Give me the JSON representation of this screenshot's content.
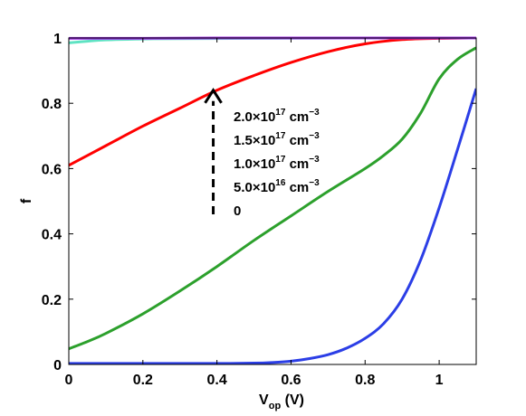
{
  "chart_data": {
    "type": "line",
    "title": "",
    "xlabel": "V",
    "xlabel_sub": "op",
    "xlabel_suffix": " (V)",
    "ylabel": "f",
    "xlim": [
      0,
      1.1
    ],
    "ylim": [
      0,
      1.0
    ],
    "x_ticks": [
      0,
      0.2,
      0.4,
      0.6,
      0.8,
      1
    ],
    "x_tick_labels": [
      "0",
      "0.2",
      "0.4",
      "0.6",
      "0.8",
      "1"
    ],
    "y_ticks": [
      0,
      0.2,
      0.4,
      0.6,
      0.8,
      1
    ],
    "y_tick_labels": [
      "0",
      "0.2",
      "0.4",
      "0.6",
      "0.8",
      "1"
    ],
    "grid": false,
    "series": [
      {
        "color": "#2b3ee6",
        "x": [
          0,
          0.1,
          0.2,
          0.3,
          0.4,
          0.5,
          0.55,
          0.6,
          0.65,
          0.7,
          0.75,
          0.8,
          0.85,
          0.9,
          0.95,
          1.0,
          1.05,
          1.1
        ],
        "y": [
          0.003,
          0.003,
          0.003,
          0.003,
          0.003,
          0.004,
          0.006,
          0.01,
          0.018,
          0.03,
          0.05,
          0.08,
          0.125,
          0.2,
          0.32,
          0.48,
          0.66,
          0.845
        ]
      },
      {
        "color": "#2ca02c",
        "x": [
          0,
          0.05,
          0.1,
          0.2,
          0.3,
          0.4,
          0.5,
          0.6,
          0.7,
          0.8,
          0.85,
          0.9,
          0.95,
          1.0,
          1.05,
          1.1
        ],
        "y": [
          0.048,
          0.07,
          0.095,
          0.155,
          0.225,
          0.3,
          0.38,
          0.455,
          0.53,
          0.6,
          0.64,
          0.69,
          0.77,
          0.875,
          0.935,
          0.97
        ]
      },
      {
        "color": "#ff0000",
        "x": [
          0,
          0.1,
          0.2,
          0.3,
          0.4,
          0.5,
          0.6,
          0.7,
          0.8,
          0.9,
          1.0,
          1.1
        ],
        "y": [
          0.61,
          0.67,
          0.73,
          0.785,
          0.84,
          0.885,
          0.925,
          0.958,
          0.982,
          0.995,
          0.999,
          1.0
        ]
      },
      {
        "color": "#5fe3c3",
        "x": [
          0,
          0.05,
          0.1,
          0.2,
          0.3,
          0.5,
          0.8,
          1.1
        ],
        "y": [
          0.985,
          0.99,
          0.994,
          0.997,
          0.998,
          0.999,
          1.0,
          1.0
        ]
      },
      {
        "color": "#a033e6",
        "x": [
          0,
          0.2,
          0.4,
          0.6,
          0.8,
          1.0,
          1.1
        ],
        "y": [
          0.999,
          0.999,
          1.0,
          1.0,
          1.0,
          1.0,
          1.0
        ]
      }
    ],
    "annotations": [
      {
        "label": "2.0×10",
        "sup": "17",
        "unit": " cm",
        "unit_sup": "−3"
      },
      {
        "label": "1.5×10",
        "sup": "17",
        "unit": " cm",
        "unit_sup": "−3"
      },
      {
        "label": "1.0×10",
        "sup": "17",
        "unit": " cm",
        "unit_sup": "−3"
      },
      {
        "label": "5.0×10",
        "sup": "16",
        "unit": " cm",
        "unit_sup": "−3"
      },
      {
        "label": "0",
        "sup": "",
        "unit": "",
        "unit_sup": ""
      }
    ],
    "arrow": {
      "x": 0.39,
      "y_from": 0.46,
      "y_to": 0.84
    }
  }
}
